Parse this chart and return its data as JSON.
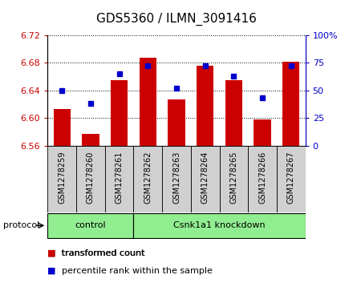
{
  "title": "GDS5360 / ILMN_3091416",
  "samples": [
    "GSM1278259",
    "GSM1278260",
    "GSM1278261",
    "GSM1278262",
    "GSM1278263",
    "GSM1278264",
    "GSM1278265",
    "GSM1278266",
    "GSM1278267"
  ],
  "red_values": [
    6.613,
    6.577,
    6.655,
    6.687,
    6.627,
    6.675,
    6.655,
    6.598,
    6.681
  ],
  "blue_values": [
    50,
    38,
    65,
    72,
    52,
    72,
    63,
    43,
    72
  ],
  "ylim_left": [
    6.56,
    6.72
  ],
  "ylim_right": [
    0,
    100
  ],
  "yticks_left": [
    6.56,
    6.6,
    6.64,
    6.68,
    6.72
  ],
  "yticks_right": [
    0,
    25,
    50,
    75,
    100
  ],
  "ytick_labels_left": [
    "6.56",
    "6.60",
    "6.64",
    "6.68",
    "6.72"
  ],
  "ytick_labels_right": [
    "0",
    "25",
    "50",
    "75",
    "100%"
  ],
  "groups": [
    {
      "label": "control",
      "start": 0,
      "end": 3
    },
    {
      "label": "Csnk1a1 knockdown",
      "start": 3,
      "end": 9
    }
  ],
  "group_color": "#90ee90",
  "red_color": "#cc0000",
  "blue_color": "#0000cc",
  "bar_bottom": 6.56,
  "bar_width": 0.6,
  "sample_box_color": "#d0d0d0",
  "protocol_label": "protocol",
  "legend_red": "transformed count",
  "legend_blue": "percentile rank within the sample"
}
